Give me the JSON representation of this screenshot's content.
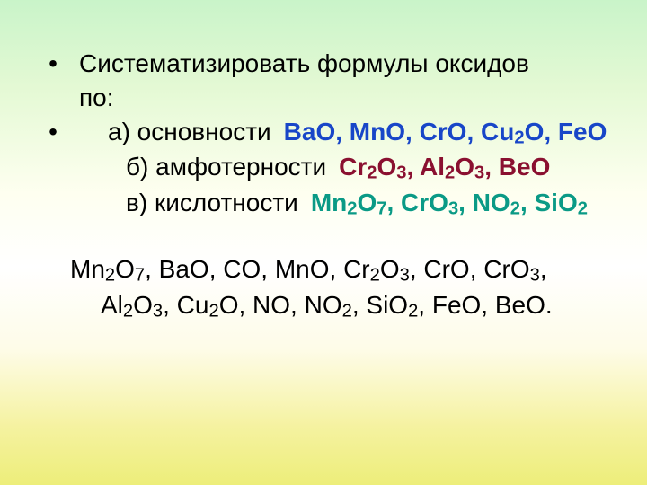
{
  "colors": {
    "text": "#000000",
    "basic_answer": "#1846c8",
    "amphoteric_answer": "#8a1030",
    "acidic_answer": "#0a9a86",
    "bg_top": "#c9f4c9",
    "bg_mid": "#ffffff",
    "bg_bottom": "#edee7a"
  },
  "fontsize_main": 28,
  "fontsize_sub_ratio": 0.72,
  "bullets": {
    "b1": "•",
    "b2": "•"
  },
  "heading_line1": "Систематизировать формулы оксидов",
  "heading_line2": "по:",
  "items": {
    "a_label": "а) основности",
    "b_label": "б) амфотерности",
    "c_label": "в) кислотности"
  },
  "answers": {
    "basic": [
      [
        "BaO"
      ],
      [
        "MnO"
      ],
      [
        "CrO"
      ],
      [
        "Cu",
        "2",
        "O"
      ],
      [
        "FeO"
      ]
    ],
    "amphoteric": [
      [
        "Cr",
        "2",
        "O",
        "3"
      ],
      [
        "Al",
        "2",
        "O",
        "3"
      ],
      [
        "BeO"
      ]
    ],
    "acidic": [
      [
        "Mn",
        "2",
        "O",
        "7"
      ],
      [
        "CrO",
        "3"
      ],
      [
        "NO",
        "2"
      ],
      [
        "SiO",
        "2"
      ]
    ]
  },
  "formula_list": [
    [
      "Mn",
      "2",
      "O",
      "7"
    ],
    [
      "BaO"
    ],
    [
      "CO"
    ],
    [
      "MnO"
    ],
    [
      "Cr",
      "2",
      "O",
      "3"
    ],
    [
      "CrO"
    ],
    [
      "CrO",
      "3"
    ],
    [
      "Al",
      "2",
      "O",
      "3"
    ],
    [
      "Cu",
      "2",
      "O"
    ],
    [
      "NO"
    ],
    [
      "NO",
      "2"
    ],
    [
      "SiO",
      "2"
    ],
    [
      "FeO"
    ],
    [
      "BeO"
    ]
  ],
  "formula_line_break_after_index": 6
}
